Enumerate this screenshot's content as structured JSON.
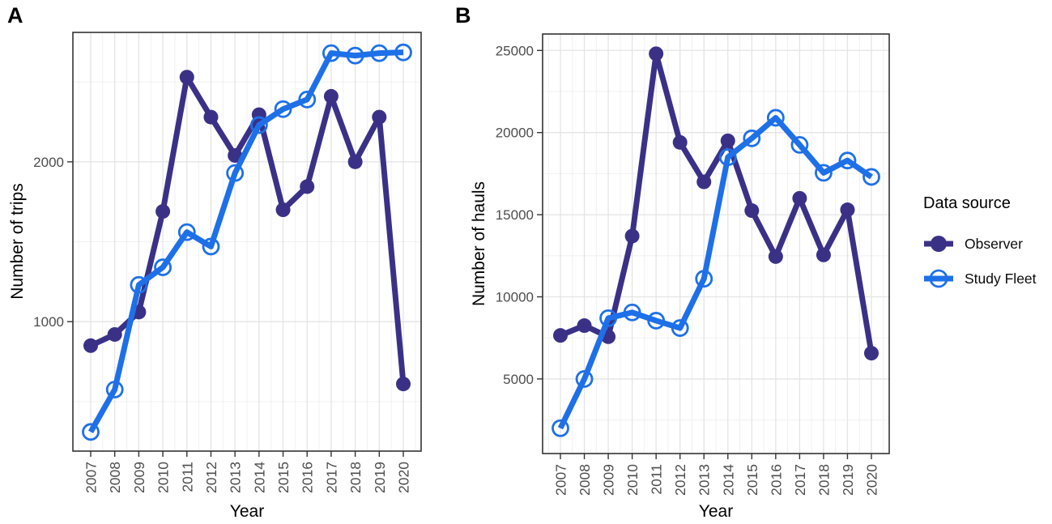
{
  "figure": {
    "panel_a_letter": "A",
    "panel_b_letter": "B"
  },
  "legend": {
    "title": "Data source",
    "items": [
      {
        "label": "Observer",
        "marker": "filled-circle",
        "color": "#3a3187"
      },
      {
        "label": "Study Fleet",
        "marker": "open-circle",
        "color": "#1e70e8"
      }
    ]
  },
  "chart_data": [
    {
      "panel": "A",
      "type": "line",
      "title": "",
      "xlabel": "Year",
      "ylabel": "Number of trips",
      "categories": [
        2007,
        2008,
        2009,
        2010,
        2011,
        2012,
        2013,
        2014,
        2015,
        2016,
        2017,
        2018,
        2019,
        2020
      ],
      "series": [
        {
          "name": "Observer",
          "marker": "filled-circle",
          "color": "#3a3187",
          "values": [
            850,
            920,
            1060,
            1690,
            2530,
            2280,
            2040,
            2295,
            1700,
            1845,
            2410,
            2000,
            2280,
            610
          ]
        },
        {
          "name": "Study Fleet",
          "marker": "open-circle",
          "color": "#1e70e8",
          "values": [
            310,
            575,
            1230,
            1340,
            1560,
            1470,
            1930,
            2230,
            2330,
            2390,
            2680,
            2665,
            2680,
            2685
          ]
        }
      ],
      "ylim": [
        190,
        2810
      ],
      "yticks_major": [
        1000,
        2000
      ],
      "yticks_minor": [
        500,
        1500,
        2500
      ],
      "grid": true,
      "legend_position": "right-outside"
    },
    {
      "panel": "B",
      "type": "line",
      "title": "",
      "xlabel": "Year",
      "ylabel": "Number of hauls",
      "categories": [
        2007,
        2008,
        2009,
        2010,
        2011,
        2012,
        2013,
        2014,
        2015,
        2016,
        2017,
        2018,
        2019,
        2020
      ],
      "series": [
        {
          "name": "Observer",
          "marker": "filled-circle",
          "color": "#3a3187",
          "values": [
            7650,
            8250,
            7570,
            13700,
            24800,
            19400,
            17000,
            19500,
            15250,
            12450,
            16000,
            12550,
            15300,
            6570
          ]
        },
        {
          "name": "Study Fleet",
          "marker": "open-circle",
          "color": "#1e70e8",
          "values": [
            2000,
            5000,
            8700,
            9050,
            8550,
            8100,
            11100,
            18500,
            19650,
            20900,
            19250,
            17550,
            18300,
            17300
          ]
        }
      ],
      "ylim": [
        460,
        26000
      ],
      "yticks_major": [
        5000,
        10000,
        15000,
        20000,
        25000
      ],
      "yticks_minor": [
        2500,
        7500,
        12500,
        17500,
        22500
      ],
      "grid": true,
      "legend_position": "right-outside"
    }
  ]
}
